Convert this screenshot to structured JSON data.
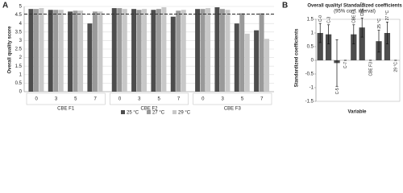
{
  "chart_data": [
    {
      "type": "grouped-bar",
      "panel_label": "A",
      "y_label": "Overall quality score",
      "groups": [
        "CBE F1",
        "CBE F2",
        "CBE F3"
      ],
      "categories": [
        "0",
        "3",
        "5",
        "7",
        "0",
        "3",
        "5",
        "7",
        "0",
        "3",
        "5",
        "7"
      ],
      "series": [
        {
          "name": "25 °C",
          "color": "#4d4d4d",
          "values": [
            4.85,
            4.8,
            4.7,
            4.0,
            4.9,
            4.85,
            4.8,
            4.4,
            4.85,
            4.95,
            4.0,
            3.6
          ]
        },
        {
          "name": "27 °C",
          "color": "#9a9a9a",
          "values": [
            4.85,
            4.8,
            4.75,
            4.7,
            4.9,
            4.8,
            4.85,
            4.75,
            4.85,
            4.85,
            4.6,
            4.6
          ]
        },
        {
          "name": "29 °C",
          "color": "#c8c8c8",
          "values": [
            4.9,
            4.8,
            4.75,
            4.7,
            4.85,
            4.85,
            4.95,
            4.8,
            4.9,
            4.8,
            3.4,
            3.1
          ]
        }
      ],
      "reference_line": 4.55,
      "ylim": [
        0,
        5
      ],
      "yticks": [
        0,
        0.5,
        1,
        1.5,
        2,
        2.5,
        3,
        3.5,
        4,
        4.5,
        5
      ],
      "grid": true
    },
    {
      "type": "error-bar",
      "panel_label": "B",
      "title": "Overall quality/ Standardized coefficients",
      "subtitle": "(95% conf. interval)",
      "x_label": "Variable",
      "y_label": "Standardized coefficients",
      "categories": [
        "C-0",
        "C-3",
        "C-5",
        "C-7",
        "CBE F1",
        "CBE F2",
        "CBE F3",
        "25 °C",
        "27 °C",
        "29 °C"
      ],
      "values": [
        1.0,
        0.95,
        -0.1,
        0,
        0.95,
        1.2,
        0,
        0.7,
        1.0,
        0
      ],
      "errors": [
        0.35,
        0.35,
        0.85,
        0,
        0.35,
        0.35,
        0,
        0.4,
        0.4,
        0
      ],
      "color": "#4d4d4d",
      "ylim": [
        -1.5,
        1.5
      ],
      "yticks": [
        -1.5,
        -1,
        -0.5,
        0,
        0.5,
        1,
        1.5
      ],
      "grid": false
    }
  ]
}
